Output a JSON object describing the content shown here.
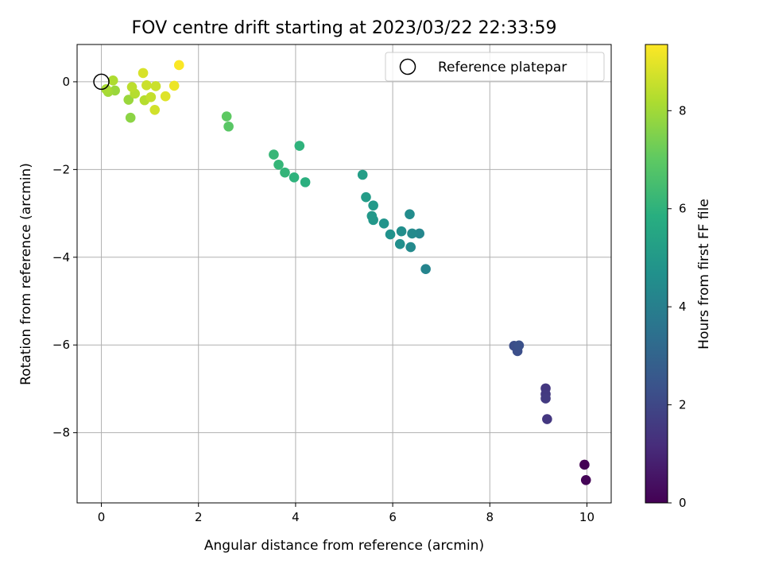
{
  "chart_data": {
    "type": "scatter",
    "title": "FOV centre drift starting at 2023/03/22 22:33:59",
    "xlabel": "Angular distance from reference (arcmin)",
    "ylabel": "Rotation from reference (arcmin)",
    "xlim": [
      -0.5,
      10.5
    ],
    "ylim": [
      -9.6,
      0.85
    ],
    "xticks": [
      0,
      2,
      4,
      6,
      8,
      10
    ],
    "yticks": [
      0,
      -2,
      -4,
      -6,
      -8
    ],
    "grid": true,
    "legend": {
      "position": "top-right",
      "entries": [
        "Reference platepar"
      ]
    },
    "reference_point": {
      "x": 0,
      "y": 0,
      "marker": "open-circle"
    },
    "colorbar": {
      "label": "Hours from first FF file",
      "range": [
        0,
        9.35
      ],
      "ticks": [
        0,
        2,
        4,
        6,
        8
      ],
      "colormap": "viridis"
    },
    "points": [
      {
        "x": 9.95,
        "y": -8.73,
        "c": 0.0
      },
      {
        "x": 9.98,
        "y": -9.08,
        "c": 0.1
      },
      {
        "x": 9.15,
        "y": -6.99,
        "c": 1.5
      },
      {
        "x": 9.15,
        "y": -7.12,
        "c": 1.55
      },
      {
        "x": 9.15,
        "y": -7.22,
        "c": 1.6
      },
      {
        "x": 9.18,
        "y": -7.69,
        "c": 1.5
      },
      {
        "x": 8.5,
        "y": -6.02,
        "c": 2.2
      },
      {
        "x": 8.57,
        "y": -6.14,
        "c": 2.25
      },
      {
        "x": 8.6,
        "y": -6.01,
        "c": 2.3
      },
      {
        "x": 6.68,
        "y": -4.27,
        "c": 4.2
      },
      {
        "x": 6.55,
        "y": -3.46,
        "c": 4.3
      },
      {
        "x": 6.4,
        "y": -3.46,
        "c": 4.4
      },
      {
        "x": 6.37,
        "y": -3.77,
        "c": 4.4
      },
      {
        "x": 6.35,
        "y": -3.02,
        "c": 4.5
      },
      {
        "x": 6.18,
        "y": -3.41,
        "c": 4.55
      },
      {
        "x": 6.15,
        "y": -3.7,
        "c": 4.6
      },
      {
        "x": 5.95,
        "y": -3.48,
        "c": 4.7
      },
      {
        "x": 5.82,
        "y": -3.23,
        "c": 4.8
      },
      {
        "x": 5.6,
        "y": -3.15,
        "c": 4.9
      },
      {
        "x": 5.57,
        "y": -3.06,
        "c": 4.95
      },
      {
        "x": 5.6,
        "y": -2.82,
        "c": 5.0
      },
      {
        "x": 5.45,
        "y": -2.63,
        "c": 5.1
      },
      {
        "x": 5.38,
        "y": -2.12,
        "c": 5.2
      },
      {
        "x": 4.2,
        "y": -2.29,
        "c": 5.9
      },
      {
        "x": 4.08,
        "y": -1.46,
        "c": 6.0
      },
      {
        "x": 3.97,
        "y": -2.18,
        "c": 6.0
      },
      {
        "x": 3.78,
        "y": -2.07,
        "c": 6.1
      },
      {
        "x": 3.65,
        "y": -1.89,
        "c": 6.15
      },
      {
        "x": 3.55,
        "y": -1.66,
        "c": 6.2
      },
      {
        "x": 2.62,
        "y": -1.02,
        "c": 6.9
      },
      {
        "x": 2.58,
        "y": -0.79,
        "c": 7.0
      },
      {
        "x": 0.6,
        "y": -0.82,
        "c": 7.7
      },
      {
        "x": 0.56,
        "y": -0.41,
        "c": 7.9
      },
      {
        "x": 0.28,
        "y": -0.2,
        "c": 7.9
      },
      {
        "x": 0.14,
        "y": -0.23,
        "c": 8.0
      },
      {
        "x": 0.1,
        "y": -0.17,
        "c": 8.1
      },
      {
        "x": 0.24,
        "y": 0.03,
        "c": 8.2
      },
      {
        "x": 0.69,
        "y": -0.27,
        "c": 8.3
      },
      {
        "x": 0.63,
        "y": -0.12,
        "c": 8.4
      },
      {
        "x": 0.89,
        "y": -0.42,
        "c": 8.3
      },
      {
        "x": 1.02,
        "y": -0.35,
        "c": 8.5
      },
      {
        "x": 0.93,
        "y": -0.08,
        "c": 8.6
      },
      {
        "x": 1.12,
        "y": -0.1,
        "c": 8.6
      },
      {
        "x": 1.1,
        "y": -0.64,
        "c": 8.7
      },
      {
        "x": 0.86,
        "y": 0.2,
        "c": 8.8
      },
      {
        "x": 1.32,
        "y": -0.33,
        "c": 8.9
      },
      {
        "x": 1.5,
        "y": -0.09,
        "c": 9.1
      },
      {
        "x": 1.6,
        "y": 0.38,
        "c": 9.3
      }
    ]
  }
}
